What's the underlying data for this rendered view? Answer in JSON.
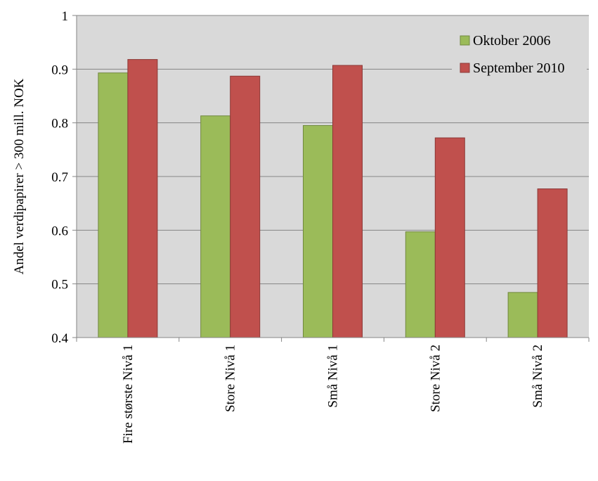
{
  "chart_data": {
    "type": "bar",
    "title": "",
    "xlabel": "",
    "ylabel": "Andel verdipapirer > 300 mill. NOK",
    "categories": [
      "Fire største Nivå 1",
      "Store Nivå 1",
      "Små Nivå 1",
      "Store Nivå 2",
      "Små Nivå 2"
    ],
    "series": [
      {
        "name": "Oktober 2006",
        "values": [
          0.893,
          0.813,
          0.795,
          0.597,
          0.484
        ],
        "color": "#9BBB59",
        "stroke": "#71893F"
      },
      {
        "name": "September 2010",
        "values": [
          0.918,
          0.887,
          0.907,
          0.772,
          0.677
        ],
        "color": "#C0504D",
        "stroke": "#8C3836"
      }
    ],
    "ylim": [
      0.4,
      1.0
    ],
    "yticks": [
      "0.4",
      "0.5",
      "0.6",
      "0.7",
      "0.8",
      "0.9",
      "1"
    ],
    "grid": true,
    "legend_position": "top-right",
    "plot_background": "#D9D9D9"
  }
}
